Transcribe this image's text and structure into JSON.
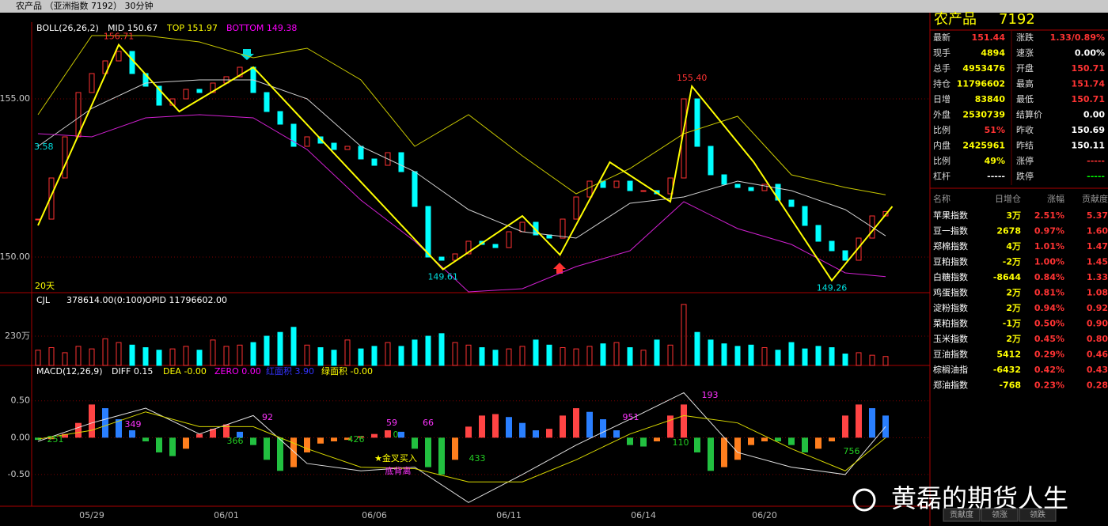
{
  "header": {
    "title": "农产品 （亚洲指数 7192） 30分钟"
  },
  "chart_data": [
    {
      "type": "candlestick",
      "legend_texts": [
        "BOLL(26,26,2)",
        "MID 150.67",
        "TOP 151.97",
        "BOTTOM 149.38"
      ],
      "period_label": "20天",
      "start_label": "3.58",
      "x": [
        0,
        1,
        2,
        3,
        4,
        5,
        6,
        7,
        8,
        9,
        10,
        11,
        12,
        13,
        14,
        15,
        16,
        17,
        18,
        19,
        20,
        21,
        22,
        23,
        24,
        25,
        26,
        27,
        28,
        29,
        30,
        31,
        32,
        33,
        34,
        35,
        36,
        37,
        38,
        39,
        40,
        41,
        42,
        43,
        44,
        45,
        46,
        47,
        48,
        49,
        50,
        51,
        52,
        53,
        54,
        55,
        56,
        57,
        58,
        59,
        60,
        61,
        62,
        63
      ],
      "values": [
        151.2,
        152.5,
        153.8,
        155.2,
        155.8,
        156.2,
        156.5,
        155.8,
        155.4,
        154.8,
        155.0,
        155.3,
        155.2,
        155.5,
        155.7,
        156.0,
        155.2,
        154.6,
        154.2,
        153.5,
        153.8,
        153.6,
        153.4,
        153.5,
        153.1,
        152.9,
        153.3,
        152.7,
        151.6,
        150.0,
        149.9,
        150.1,
        150.5,
        150.4,
        150.3,
        150.8,
        151.1,
        150.7,
        150.6,
        151.2,
        151.9,
        152.4,
        152.2,
        152.4,
        152.1,
        152.1,
        152.0,
        152.5,
        155.0,
        153.5,
        152.6,
        152.3,
        152.2,
        152.1,
        152.3,
        151.8,
        151.6,
        151.0,
        150.5,
        150.2,
        149.9,
        150.6,
        151.3,
        151.44
      ],
      "up_color": "#ff3232",
      "down_color": "#00ffff",
      "bands": {
        "x": [
          0,
          4,
          8,
          12,
          16,
          20,
          24,
          28,
          32,
          36,
          40,
          44,
          48,
          52,
          56,
          60,
          63
        ],
        "series": [
          {
            "name": "TOP",
            "color": "#c8c800",
            "values": [
              154.5,
              157.0,
              157.0,
              156.8,
              156.3,
              156.6,
              155.6,
              153.5,
              154.5,
              153.2,
              152.0,
              152.8,
              153.9,
              154.45,
              152.6,
              152.2,
              151.97
            ]
          },
          {
            "name": "MID",
            "color": "#d0d0d0",
            "values": [
              153.5,
              154.7,
              155.5,
              155.6,
              155.6,
              155.0,
              153.5,
              152.7,
              151.5,
              150.8,
              150.6,
              151.7,
              151.9,
              152.4,
              152.1,
              151.5,
              150.67
            ]
          },
          {
            "name": "BOTTOM",
            "color": "#d020d0",
            "values": [
              153.9,
              153.8,
              154.4,
              154.5,
              154.4,
              153.4,
              151.8,
              150.5,
              148.9,
              149.0,
              149.7,
              150.2,
              151.75,
              150.9,
              150.4,
              149.5,
              149.38
            ]
          }
        ]
      },
      "zigzag": {
        "color": "#ffff00",
        "x": [
          0,
          6,
          10.5,
          16,
          30.1,
          36,
          38.8,
          42.5,
          47,
          48.6,
          53.2,
          59,
          63.5
        ],
        "values": [
          151.0,
          156.71,
          154.6,
          156.0,
          149.61,
          151.3,
          150.07,
          153.0,
          151.75,
          155.4,
          153.0,
          149.26,
          151.6
        ],
        "value_labels": [
          null,
          "156.71",
          null,
          null,
          "149.61",
          null,
          null,
          null,
          null,
          "155.40",
          null,
          "149.26",
          null
        ]
      },
      "ylim": [
        148.875,
        157.425
      ],
      "yticks": [
        {
          "value": 155,
          "label": "155.00"
        },
        {
          "value": 150,
          "label": "150.00"
        }
      ],
      "xticks": [
        {
          "value": 4,
          "label": "05/29"
        },
        {
          "value": 14,
          "label": "06/01"
        },
        {
          "value": 25,
          "label": "06/06"
        },
        {
          "value": 35,
          "label": "06/11"
        },
        {
          "value": 45,
          "label": "06/14"
        },
        {
          "value": 54,
          "label": "06/20"
        }
      ]
    },
    {
      "type": "bar",
      "legend_texts": [
        "CJL",
        "378614.00(0:100)",
        "OPID 11796602.00"
      ],
      "values": [
        120,
        140,
        100,
        150,
        130,
        210,
        180,
        160,
        140,
        120,
        130,
        150,
        120,
        200,
        150,
        160,
        180,
        230,
        260,
        300,
        160,
        140,
        120,
        200,
        130,
        150,
        180,
        150,
        200,
        230,
        250,
        180,
        160,
        140,
        120,
        130,
        150,
        200,
        160,
        140,
        130,
        150,
        170,
        180,
        140,
        120,
        200,
        160,
        480,
        260,
        200,
        170,
        150,
        160,
        140,
        120,
        180,
        130,
        150,
        140,
        90,
        100,
        80,
        70
      ],
      "ylim": [
        0,
        560
      ],
      "yticks": [
        {
          "value": 230,
          "label": "230万"
        }
      ]
    },
    {
      "type": "macd",
      "legend_texts": [
        "MACD(12,26,9)",
        "DIFF 0.15",
        "DEA -0.00",
        "ZERO 0.00",
        "红面积 3.90",
        "绿面积 -0.00"
      ],
      "values": [
        -0.03,
        -0.02,
        0.05,
        0.2,
        0.45,
        0.4,
        0.25,
        0.1,
        -0.05,
        -0.2,
        -0.25,
        -0.15,
        0.05,
        0.12,
        0.18,
        0.08,
        -0.1,
        -0.3,
        -0.45,
        -0.4,
        -0.2,
        -0.08,
        -0.05,
        -0.03,
        0.02,
        0.05,
        0.1,
        0.08,
        -0.15,
        -0.4,
        -0.5,
        -0.3,
        0.15,
        0.3,
        0.32,
        0.28,
        0.2,
        0.1,
        0.12,
        0.3,
        0.4,
        0.35,
        0.25,
        0.1,
        -0.1,
        -0.12,
        -0.05,
        0.3,
        0.45,
        -0.2,
        -0.45,
        -0.4,
        -0.3,
        -0.1,
        -0.05,
        -0.05,
        -0.1,
        -0.2,
        -0.15,
        -0.05,
        0.3,
        0.45,
        0.4,
        0.3
      ],
      "lines": {
        "x": [
          0,
          4,
          8,
          12,
          16,
          20,
          24,
          28,
          32,
          36,
          40,
          44,
          48,
          52,
          56,
          60,
          63
        ],
        "series": [
          {
            "name": "DIFF",
            "color": "#e0e0e0",
            "values": [
              -0.05,
              0.2,
              0.4,
              0.05,
              0.3,
              -0.35,
              -0.45,
              -0.4,
              -0.88,
              -0.5,
              -0.1,
              0.25,
              0.61,
              -0.2,
              -0.4,
              -0.5,
              0.15
            ]
          },
          {
            "name": "DEA",
            "color": "#d8d800",
            "values": [
              -0.02,
              0.1,
              0.35,
              0.15,
              0.15,
              -0.15,
              -0.4,
              -0.42,
              -0.6,
              -0.6,
              -0.3,
              0.05,
              0.3,
              0.2,
              -0.15,
              -0.45,
              0.0
            ]
          }
        ]
      },
      "annotations": [
        "251",
        "349",
        "92",
        "366",
        "426",
        "59",
        "66",
        "0",
        "433",
        "951",
        "110",
        "193",
        "756",
        "★金叉买入",
        "底背离"
      ],
      "ylim": [
        -0.93,
        0.98
      ],
      "yticks": [
        {
          "value": 0.5,
          "label": "0.50"
        },
        {
          "value": 0,
          "label": "0.00"
        },
        {
          "value": -0.5,
          "label": "-0.50"
        }
      ]
    }
  ],
  "quote": {
    "title": "农产品",
    "code": "7192",
    "rows": [
      [
        "最新",
        "151.44",
        "涨跌",
        "1.33/0.89%"
      ],
      [
        "现手",
        "4894",
        "速涨",
        "0.00%"
      ],
      [
        "总手",
        "4953476",
        "开盘",
        "150.71"
      ],
      [
        "持仓",
        "11796602",
        "最高",
        "151.74"
      ],
      [
        "日增",
        "83840",
        "最低",
        "150.71"
      ],
      [
        "外盘",
        "2530739",
        "结算价",
        "0.00"
      ],
      [
        "比例",
        "51%",
        "昨收",
        "150.69"
      ],
      [
        "内盘",
        "2425961",
        "昨结",
        "150.11"
      ],
      [
        "比例",
        "49%",
        "涨停",
        "-----"
      ],
      [
        "杠杆",
        "-----",
        "跌停",
        "-----"
      ]
    ]
  },
  "list": {
    "header": [
      "名称",
      "日增仓",
      "涨幅",
      "贡献度"
    ],
    "rows": [
      [
        "苹果指数",
        "3万",
        "2.51%",
        "5.37"
      ],
      [
        "豆一指数",
        "2678",
        "0.97%",
        "1.60"
      ],
      [
        "郑棉指数",
        "4万",
        "1.01%",
        "1.47"
      ],
      [
        "豆粕指数",
        "-2万",
        "1.00%",
        "1.45"
      ],
      [
        "白糖指数",
        "-8644",
        "0.84%",
        "1.33"
      ],
      [
        "鸡蛋指数",
        "2万",
        "0.81%",
        "1.08"
      ],
      [
        "淀粉指数",
        "2万",
        "0.94%",
        "0.92"
      ],
      [
        "菜粕指数",
        "-1万",
        "0.50%",
        "0.90"
      ],
      [
        "玉米指数",
        "2万",
        "0.45%",
        "0.80"
      ],
      [
        "豆油指数",
        "5412",
        "0.29%",
        "0.46"
      ],
      [
        "棕榈油指",
        "-6432",
        "0.42%",
        "0.43"
      ],
      [
        "郑油指数",
        "-768",
        "0.23%",
        "0.28"
      ]
    ]
  },
  "tabs": [
    "贡献度",
    "领涨",
    "领跌"
  ],
  "watermark": "黄磊的期货人生"
}
